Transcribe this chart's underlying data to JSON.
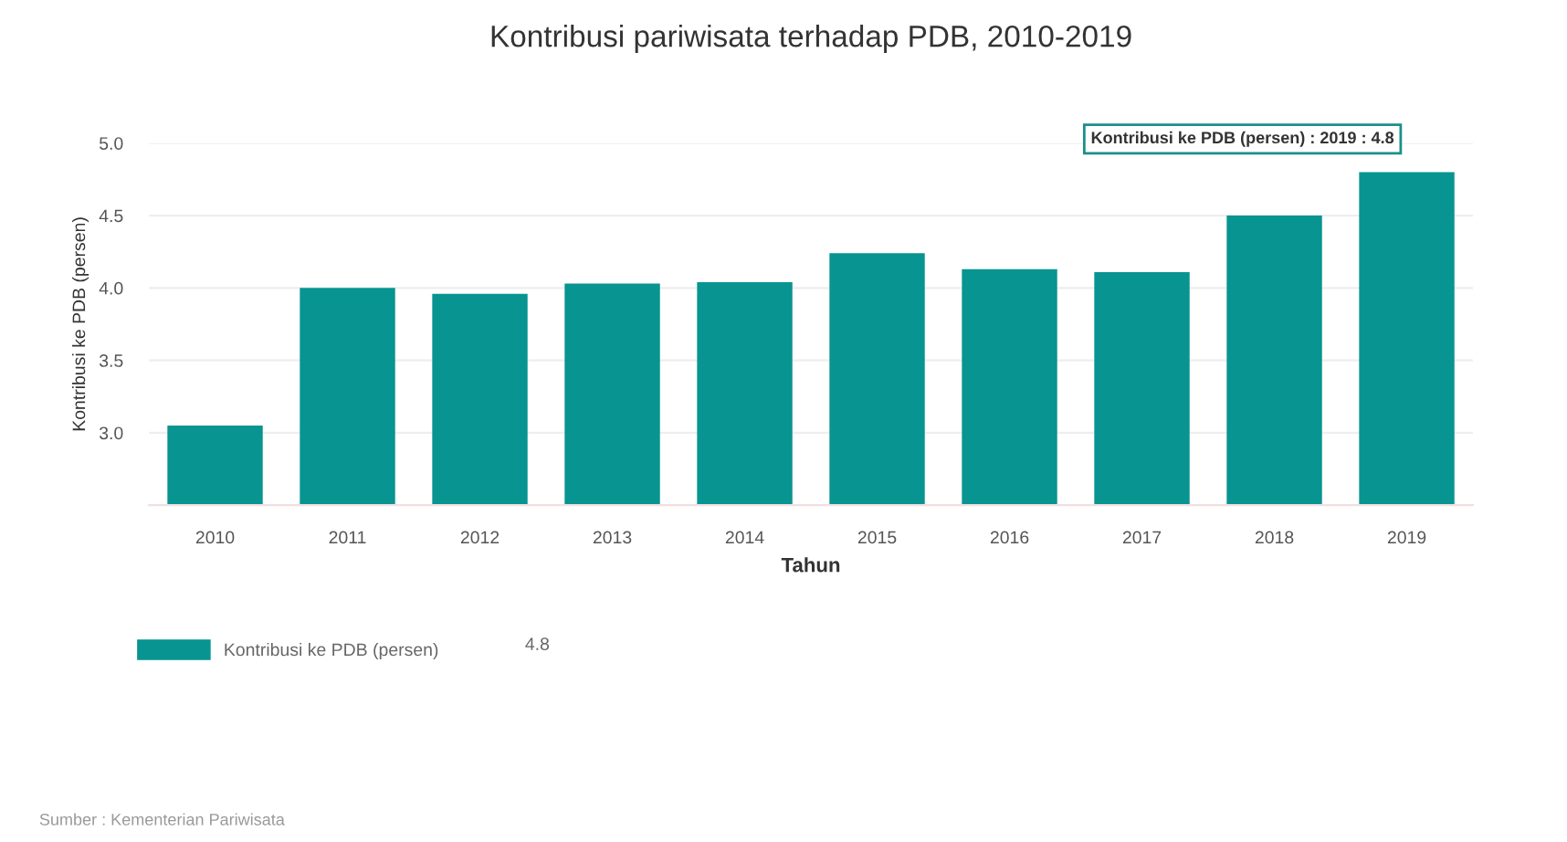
{
  "chart_data": {
    "type": "bar",
    "title": "Kontribusi pariwisata terhadap PDB, 2010-2019",
    "xlabel": "Tahun",
    "ylabel": "Kontribusi ke PDB (persen)",
    "categories": [
      "2010",
      "2011",
      "2012",
      "2013",
      "2014",
      "2015",
      "2016",
      "2017",
      "2018",
      "2019"
    ],
    "series": [
      {
        "name": "Kontribusi ke PDB (persen)",
        "color": "#089491",
        "values": [
          3.05,
          4.0,
          3.96,
          4.03,
          4.04,
          4.24,
          4.13,
          4.11,
          4.5,
          4.8
        ]
      }
    ],
    "ylim": [
      2.5,
      5.0
    ],
    "yticks": [
      {
        "value": 3,
        "label": "3.0"
      },
      {
        "value": 3.5,
        "label": "3.5"
      },
      {
        "value": 4,
        "label": "4.0"
      },
      {
        "value": 4.5,
        "label": "4.5"
      },
      {
        "value": 5,
        "label": "5.0"
      }
    ],
    "grid": "y",
    "legend": "bottom left",
    "annotations": [
      {
        "text": "Kontribusi ke PDB (persen) : 2019 : 4.8",
        "x": "2019",
        "y": 4.8
      },
      "4.8",
      "Sumber : Kementerian Pariwisata"
    ]
  }
}
